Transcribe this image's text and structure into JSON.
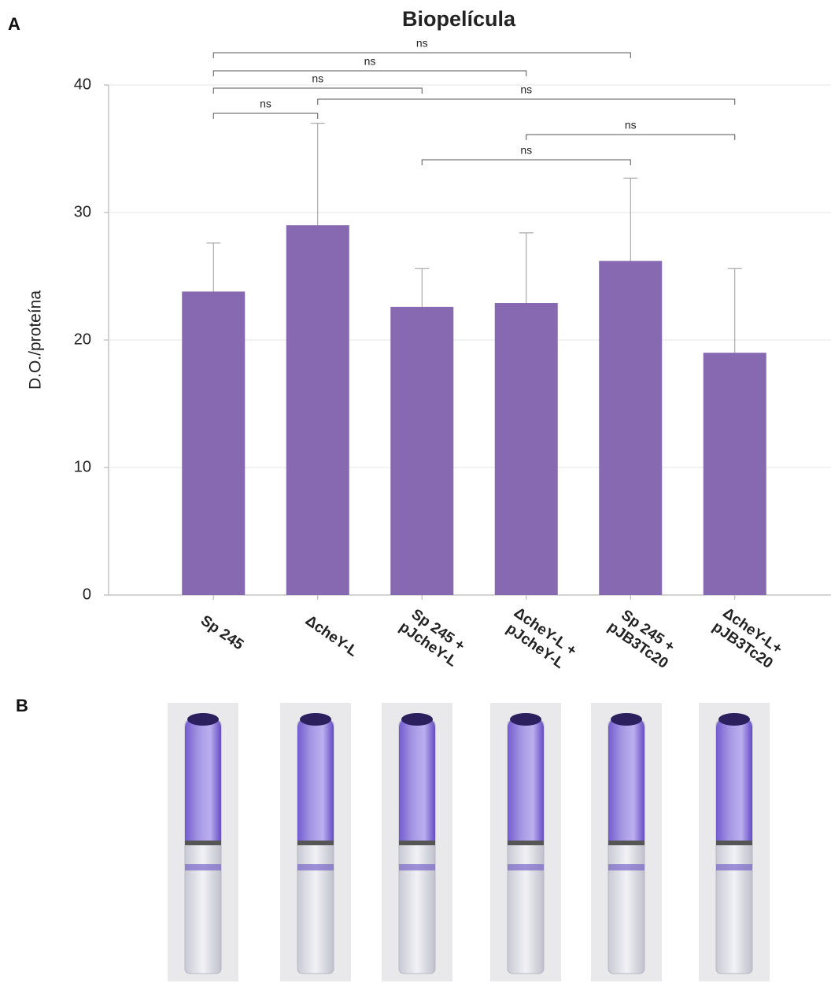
{
  "panel_labels": [
    "A",
    "B"
  ],
  "chart_data": {
    "type": "bar",
    "title": "Biopelícula",
    "ylabel": "D.O./proteína",
    "categories": [
      "Sp 245",
      "ΔcheY-L",
      "Sp 245 +\npJcheY-L",
      "ΔcheY-L +\npJcheY-L",
      "Sp 245 +\npJB3Tc20",
      "ΔcheY-L+\npJB3Tc20"
    ],
    "values": [
      23.8,
      29.0,
      22.6,
      22.9,
      26.2,
      19.0
    ],
    "errors": [
      3.8,
      8.0,
      3.0,
      5.5,
      6.5,
      6.6
    ],
    "color": "#8669b0",
    "error_color": "#999999",
    "ylim": [
      0,
      40
    ],
    "yticks": [
      0,
      10,
      20,
      30,
      40
    ],
    "grid": true,
    "comparisons": [
      {
        "from": 0,
        "to": 4,
        "label": "ns"
      },
      {
        "from": 0,
        "to": 3,
        "label": "ns"
      },
      {
        "from": 0,
        "to": 2,
        "label": "ns"
      },
      {
        "from": 1,
        "to": 5,
        "label": "ns"
      },
      {
        "from": 0,
        "to": 1,
        "label": "ns"
      },
      {
        "from": 3,
        "to": 5,
        "label": "ns"
      },
      {
        "from": 2,
        "to": 4,
        "label": "ns"
      }
    ]
  }
}
